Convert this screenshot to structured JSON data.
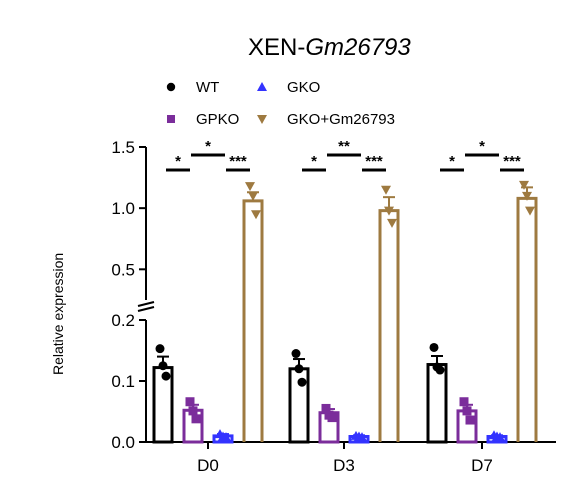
{
  "chart_data": {
    "type": "bar",
    "title_prefix": "XEN-",
    "title_gene": "Gm26793",
    "ylabel": "Relative expression",
    "categories": [
      "D0",
      "D3",
      "D7"
    ],
    "y_broken_axis": {
      "lower_range": [
        0,
        0.2
      ],
      "upper_range": [
        0.2,
        1.5
      ],
      "lower_ticks": [
        "0.0",
        "0.1",
        "0.2"
      ],
      "upper_ticks": [
        "0.5",
        "1.0",
        "1.5"
      ]
    },
    "legend": {
      "placement": "top"
    },
    "series": [
      {
        "name": "WT",
        "color": "#000000",
        "marker": "circle",
        "values": [
          0.122,
          0.12,
          0.127
        ],
        "errors": [
          0.018,
          0.016,
          0.014
        ],
        "points": [
          [
            0.153,
            0.125,
            0.108
          ],
          [
            0.145,
            0.12,
            0.098
          ],
          [
            0.155,
            0.123,
            0.118
          ]
        ]
      },
      {
        "name": "GPKO",
        "color": "#7B2D9B",
        "marker": "square",
        "values": [
          0.052,
          0.048,
          0.051
        ],
        "errors": [
          0.009,
          0.006,
          0.01
        ],
        "points": [
          [
            0.066,
            0.051,
            0.038
          ],
          [
            0.055,
            0.044,
            0.04
          ],
          [
            0.066,
            0.051,
            0.036
          ]
        ]
      },
      {
        "name": "GKO",
        "color": "#3333FF",
        "marker": "triangle-up",
        "values": [
          0.01,
          0.009,
          0.009
        ],
        "errors": [
          0.003,
          0.002,
          0.002
        ],
        "points": [
          [
            0.013,
            0.009,
            0.008
          ],
          [
            0.01,
            0.009,
            0.008
          ],
          [
            0.011,
            0.009,
            0.008
          ]
        ]
      },
      {
        "name": "GKO+Gm26793",
        "color": "#9E7A40",
        "marker": "triangle-down",
        "values": [
          1.06,
          0.98,
          1.08
        ],
        "errors": [
          0.07,
          0.11,
          0.09
        ],
        "points": [
          [
            1.18,
            1.1,
            0.95
          ],
          [
            1.15,
            0.98,
            0.88
          ],
          [
            1.19,
            1.1,
            0.98
          ]
        ]
      }
    ],
    "significance": [
      {
        "group": 0,
        "from": 0,
        "to": 1,
        "label": "*"
      },
      {
        "group": 0,
        "from": 1,
        "to": 2,
        "label": "*"
      },
      {
        "group": 0,
        "from": 2,
        "to": 3,
        "label": "***"
      },
      {
        "group": 1,
        "from": 0,
        "to": 1,
        "label": "*"
      },
      {
        "group": 1,
        "from": 1,
        "to": 2,
        "label": "**"
      },
      {
        "group": 1,
        "from": 2,
        "to": 3,
        "label": "***"
      },
      {
        "group": 2,
        "from": 0,
        "to": 1,
        "label": "*"
      },
      {
        "group": 2,
        "from": 1,
        "to": 2,
        "label": "*"
      },
      {
        "group": 2,
        "from": 2,
        "to": 3,
        "label": "***"
      }
    ]
  }
}
